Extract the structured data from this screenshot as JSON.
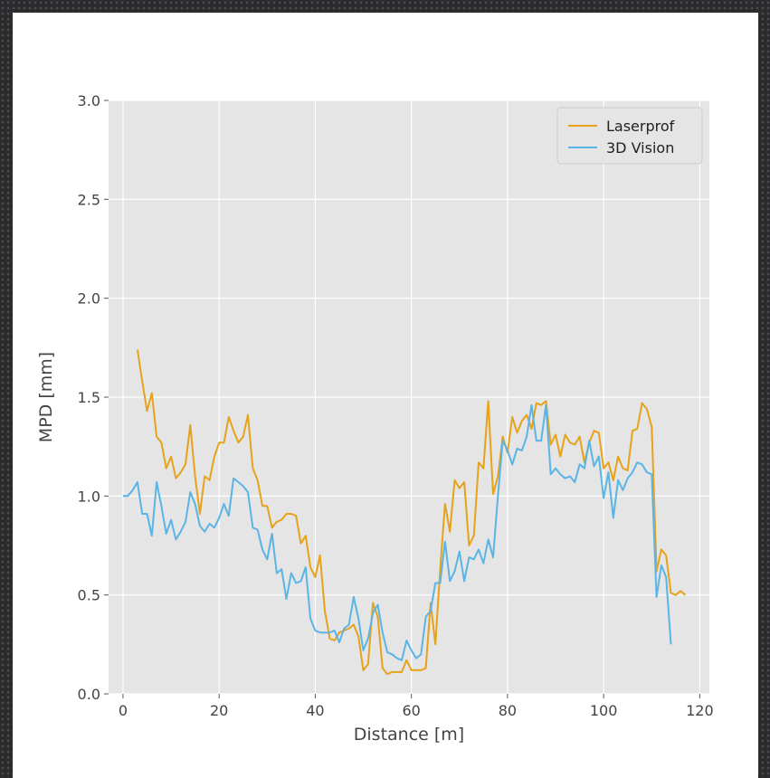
{
  "chart_data": {
    "type": "line",
    "title": "",
    "xlabel": "Distance [m]",
    "ylabel": "MPD [mm]",
    "xlim": [
      -3,
      122
    ],
    "ylim": [
      0,
      3
    ],
    "xticks": [
      0,
      20,
      40,
      60,
      80,
      100,
      120
    ],
    "xtick_labels": [
      "0",
      "20",
      "40",
      "60",
      "80",
      "100",
      "120"
    ],
    "yticks": [
      0.0,
      0.5,
      1.0,
      1.5,
      2.0,
      2.5,
      3.0
    ],
    "ytick_labels": [
      "0.0",
      "0.5",
      "1.0",
      "1.5",
      "2.0",
      "2.5",
      "3.0"
    ],
    "grid": true,
    "background": "#e5e5e5",
    "legend_position": "top-right",
    "series": [
      {
        "name": "Laserprof",
        "color": "#e6a21b",
        "x": [
          3,
          4,
          5,
          6,
          7,
          8,
          9,
          10,
          11,
          12,
          13,
          14,
          15,
          16,
          17,
          18,
          19,
          20,
          21,
          22,
          23,
          24,
          25,
          26,
          27,
          28,
          29,
          30,
          31,
          32,
          33,
          34,
          35,
          36,
          37,
          38,
          39,
          40,
          41,
          42,
          43,
          44,
          45,
          46,
          47,
          48,
          49,
          50,
          51,
          52,
          53,
          54,
          55,
          56,
          57,
          58,
          59,
          60,
          61,
          62,
          63,
          64,
          65,
          66,
          67,
          68,
          69,
          70,
          71,
          72,
          73,
          74,
          75,
          76,
          77,
          78,
          79,
          80,
          81,
          82,
          83,
          84,
          85,
          86,
          87,
          88,
          89,
          90,
          91,
          92,
          93,
          94,
          95,
          96,
          97,
          98,
          99,
          100,
          101,
          102,
          103,
          104,
          105,
          106,
          107,
          108,
          109,
          110,
          111,
          112,
          113,
          114,
          115,
          116,
          117
        ],
        "y": [
          1.74,
          1.58,
          1.43,
          1.52,
          1.3,
          1.27,
          1.14,
          1.2,
          1.09,
          1.12,
          1.16,
          1.36,
          1.1,
          0.91,
          1.1,
          1.08,
          1.2,
          1.27,
          1.27,
          1.4,
          1.33,
          1.27,
          1.3,
          1.41,
          1.14,
          1.08,
          0.95,
          0.95,
          0.84,
          0.87,
          0.88,
          0.91,
          0.91,
          0.9,
          0.76,
          0.8,
          0.64,
          0.59,
          0.7,
          0.42,
          0.28,
          0.27,
          0.31,
          0.32,
          0.33,
          0.35,
          0.29,
          0.12,
          0.15,
          0.46,
          0.39,
          0.13,
          0.1,
          0.11,
          0.11,
          0.11,
          0.17,
          0.12,
          0.12,
          0.12,
          0.13,
          0.46,
          0.25,
          0.63,
          0.96,
          0.82,
          1.08,
          1.04,
          1.07,
          0.75,
          0.8,
          1.17,
          1.14,
          1.48,
          1.01,
          1.1,
          1.3,
          1.22,
          1.4,
          1.32,
          1.38,
          1.41,
          1.34,
          1.47,
          1.46,
          1.48,
          1.26,
          1.31,
          1.2,
          1.31,
          1.27,
          1.26,
          1.3,
          1.17,
          1.27,
          1.33,
          1.32,
          1.14,
          1.17,
          1.08,
          1.2,
          1.14,
          1.13,
          1.33,
          1.34,
          1.47,
          1.44,
          1.35,
          0.62,
          0.73,
          0.7,
          0.51,
          0.5,
          0.52,
          0.5
        ]
      },
      {
        "name": "3D Vision",
        "color": "#5ab4e6",
        "x": [
          0,
          1,
          2,
          3,
          4,
          5,
          6,
          7,
          8,
          9,
          10,
          11,
          12,
          13,
          14,
          15,
          16,
          17,
          18,
          19,
          20,
          21,
          22,
          23,
          24,
          25,
          26,
          27,
          28,
          29,
          30,
          31,
          32,
          33,
          34,
          35,
          36,
          37,
          38,
          39,
          40,
          41,
          42,
          43,
          44,
          45,
          46,
          47,
          48,
          49,
          50,
          51,
          52,
          53,
          54,
          55,
          56,
          57,
          58,
          59,
          60,
          61,
          62,
          63,
          64,
          65,
          66,
          67,
          68,
          69,
          70,
          71,
          72,
          73,
          74,
          75,
          76,
          77,
          78,
          79,
          80,
          81,
          82,
          83,
          84,
          85,
          86,
          87,
          88,
          89,
          90,
          91,
          92,
          93,
          94,
          95,
          96,
          97,
          98,
          99,
          100,
          101,
          102,
          103,
          104,
          105,
          106,
          107,
          108,
          109,
          110,
          111,
          112,
          113,
          114
        ],
        "y": [
          1.0,
          1.0,
          1.03,
          1.07,
          0.91,
          0.91,
          0.8,
          1.07,
          0.95,
          0.81,
          0.88,
          0.78,
          0.82,
          0.87,
          1.02,
          0.96,
          0.85,
          0.82,
          0.86,
          0.84,
          0.89,
          0.96,
          0.9,
          1.09,
          1.07,
          1.05,
          1.02,
          0.84,
          0.83,
          0.73,
          0.68,
          0.81,
          0.61,
          0.63,
          0.48,
          0.61,
          0.56,
          0.57,
          0.64,
          0.38,
          0.32,
          0.31,
          0.31,
          0.31,
          0.32,
          0.26,
          0.33,
          0.35,
          0.49,
          0.38,
          0.22,
          0.28,
          0.41,
          0.45,
          0.31,
          0.21,
          0.2,
          0.18,
          0.17,
          0.27,
          0.22,
          0.18,
          0.2,
          0.39,
          0.42,
          0.56,
          0.56,
          0.77,
          0.57,
          0.62,
          0.72,
          0.57,
          0.69,
          0.68,
          0.73,
          0.66,
          0.78,
          0.69,
          1.0,
          1.28,
          1.23,
          1.16,
          1.24,
          1.23,
          1.3,
          1.46,
          1.28,
          1.28,
          1.46,
          1.11,
          1.14,
          1.11,
          1.09,
          1.1,
          1.07,
          1.16,
          1.14,
          1.28,
          1.15,
          1.2,
          0.99,
          1.12,
          0.89,
          1.08,
          1.03,
          1.09,
          1.12,
          1.17,
          1.16,
          1.12,
          1.11,
          0.49,
          0.65,
          0.59,
          0.25
        ]
      }
    ]
  }
}
